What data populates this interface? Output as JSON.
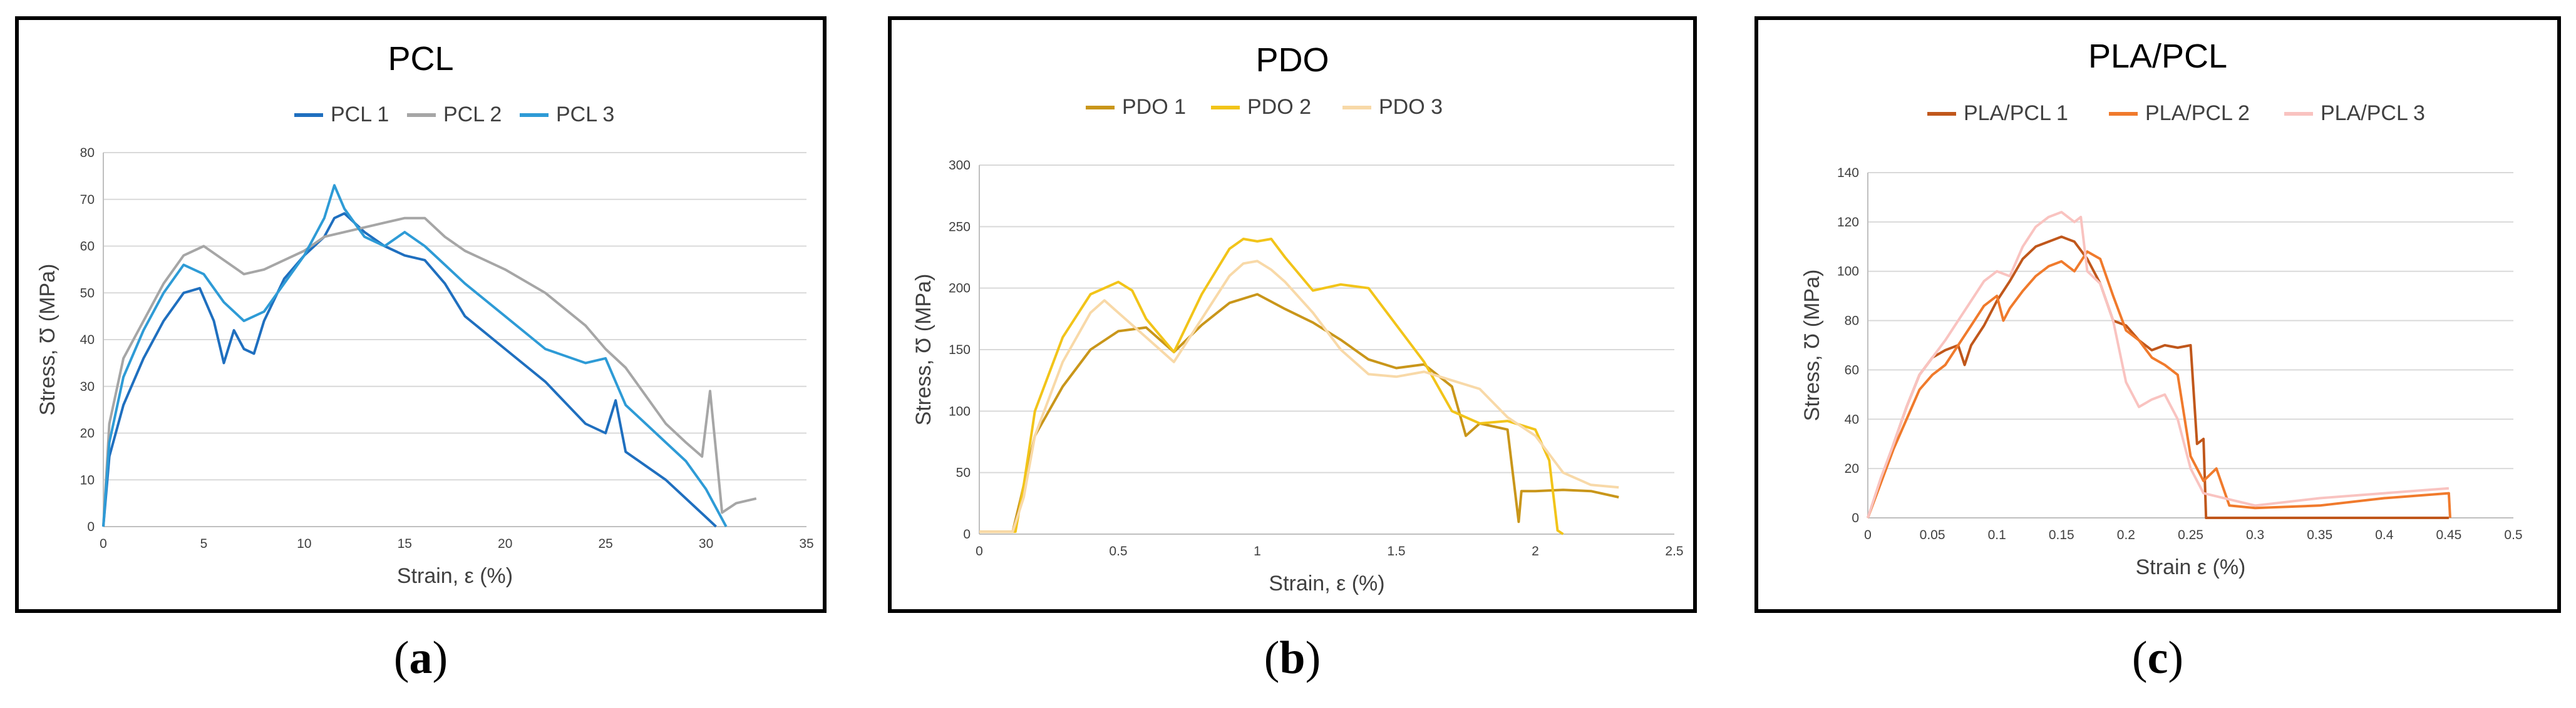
{
  "chart_data": [
    {
      "type": "line",
      "title": "PCL",
      "xlabel": "Strain, ε (%)",
      "ylabel": "Stress, Ʊ (MPa)",
      "xlim": [
        0,
        35
      ],
      "ylim": [
        0,
        80
      ],
      "xticks": [
        "0",
        "5",
        "10",
        "15",
        "20",
        "25",
        "30",
        "35"
      ],
      "yticks": [
        "0",
        "10",
        "20",
        "30",
        "40",
        "50",
        "60",
        "70",
        "80"
      ],
      "series": [
        {
          "name": "PCL 1",
          "color": "#1f6fbf",
          "x": [
            0,
            0.3,
            1,
            2,
            3,
            4,
            4.8,
            5.5,
            6,
            6.5,
            7,
            7.5,
            8,
            9,
            10,
            11,
            11.5,
            12,
            13,
            14,
            15,
            16,
            17,
            18,
            20,
            22,
            24,
            25,
            25.5,
            26,
            27,
            28,
            29,
            30,
            30.5
          ],
          "y": [
            0,
            15,
            26,
            36,
            44,
            50,
            51,
            44,
            35,
            42,
            38,
            37,
            44,
            53,
            58,
            62,
            66,
            67,
            63,
            60,
            58,
            57,
            52,
            45,
            38,
            31,
            22,
            20,
            27,
            16,
            13,
            10,
            6,
            2,
            0
          ]
        },
        {
          "name": "PCL 2",
          "color": "#a6a6a6",
          "x": [
            0,
            0.3,
            1,
            2,
            3,
            4,
            5,
            6,
            7,
            8,
            9,
            10,
            11,
            12,
            13,
            14,
            15,
            16,
            17,
            18,
            20,
            22,
            24,
            25,
            26,
            27,
            28,
            29,
            29.8,
            30.2,
            30.8,
            31.5,
            32.5
          ],
          "y": [
            0,
            22,
            36,
            44,
            52,
            58,
            60,
            57,
            54,
            55,
            57,
            59,
            62,
            63,
            64,
            65,
            66,
            66,
            62,
            59,
            55,
            50,
            43,
            38,
            34,
            28,
            22,
            18,
            15,
            29,
            3,
            5,
            6
          ]
        },
        {
          "name": "PCL 3",
          "color": "#2e9bd6",
          "x": [
            0,
            0.3,
            1,
            2,
            3,
            4,
            5,
            6,
            7,
            8,
            9,
            10,
            11,
            11.5,
            12,
            13,
            14,
            15,
            16,
            17,
            18,
            20,
            22,
            24,
            25,
            26,
            27,
            28,
            29,
            30,
            31
          ],
          "y": [
            0,
            18,
            32,
            42,
            50,
            56,
            54,
            48,
            44,
            46,
            52,
            58,
            66,
            73,
            68,
            62,
            60,
            63,
            60,
            56,
            52,
            45,
            38,
            35,
            36,
            26,
            22,
            18,
            14,
            8,
            0
          ]
        }
      ],
      "legend_position": "top"
    },
    {
      "type": "line",
      "title": "PDO",
      "xlabel": "Strain, ε (%)",
      "ylabel": "Stress, Ʊ (MPa)",
      "xlim": [
        0,
        2.5
      ],
      "ylim": [
        0,
        300
      ],
      "xticks": [
        "0",
        "0.5",
        "1",
        "1.5",
        "2",
        "2.5"
      ],
      "yticks": [
        "0",
        "50",
        "100",
        "150",
        "200",
        "250",
        "300"
      ],
      "series": [
        {
          "name": "PDO 1",
          "color": "#c9961a",
          "x": [
            0,
            0.12,
            0.15,
            0.2,
            0.3,
            0.4,
            0.5,
            0.6,
            0.7,
            0.8,
            0.9,
            1.0,
            1.1,
            1.2,
            1.3,
            1.4,
            1.5,
            1.6,
            1.7,
            1.75,
            1.8,
            1.9,
            1.94,
            1.95,
            2.0,
            2.1,
            2.2,
            2.3
          ],
          "y": [
            2,
            2,
            30,
            80,
            120,
            150,
            165,
            168,
            148,
            170,
            188,
            195,
            183,
            172,
            158,
            142,
            135,
            138,
            120,
            80,
            90,
            85,
            10,
            35,
            35,
            36,
            35,
            30
          ]
        },
        {
          "name": "PDO 2",
          "color": "#f2c419",
          "x": [
            0,
            0.13,
            0.16,
            0.2,
            0.3,
            0.4,
            0.5,
            0.55,
            0.6,
            0.7,
            0.8,
            0.9,
            0.95,
            1.0,
            1.05,
            1.1,
            1.2,
            1.3,
            1.4,
            1.5,
            1.6,
            1.7,
            1.8,
            1.9,
            2.0,
            2.05,
            2.08,
            2.1
          ],
          "y": [
            2,
            2,
            40,
            100,
            160,
            195,
            205,
            198,
            175,
            148,
            195,
            232,
            240,
            238,
            240,
            225,
            198,
            203,
            200,
            170,
            140,
            100,
            90,
            92,
            85,
            60,
            3,
            0
          ]
        },
        {
          "name": "PDO 3",
          "color": "#f8d9a8",
          "x": [
            0,
            0.12,
            0.16,
            0.2,
            0.3,
            0.4,
            0.45,
            0.5,
            0.6,
            0.7,
            0.8,
            0.9,
            0.95,
            1.0,
            1.05,
            1.1,
            1.2,
            1.3,
            1.4,
            1.5,
            1.6,
            1.7,
            1.8,
            1.9,
            2.0,
            2.1,
            2.2,
            2.3
          ],
          "y": [
            2,
            2,
            30,
            80,
            140,
            180,
            190,
            180,
            160,
            140,
            175,
            210,
            220,
            222,
            215,
            205,
            180,
            150,
            130,
            128,
            132,
            125,
            118,
            95,
            80,
            50,
            40,
            38
          ]
        }
      ],
      "legend_position": "top"
    },
    {
      "type": "line",
      "title": "PLA/PCL",
      "xlabel": "Strain ε (%)",
      "ylabel": "Stress, Ʊ (MPa)",
      "xlim": [
        0,
        0.5
      ],
      "ylim": [
        0,
        140
      ],
      "xticks": [
        "0",
        "0.05",
        "0.1",
        "0.15",
        "0.2",
        "0.25",
        "0.3",
        "0.35",
        "0.4",
        "0.45",
        "0.5"
      ],
      "yticks": [
        "0",
        "20",
        "40",
        "60",
        "80",
        "100",
        "120",
        "140"
      ],
      "series": [
        {
          "name": "PLA/PCL 1",
          "color": "#c0571b",
          "x": [
            0,
            0.01,
            0.02,
            0.03,
            0.04,
            0.05,
            0.06,
            0.07,
            0.075,
            0.08,
            0.09,
            0.1,
            0.11,
            0.12,
            0.13,
            0.14,
            0.15,
            0.16,
            0.17,
            0.18,
            0.19,
            0.2,
            0.21,
            0.22,
            0.23,
            0.24,
            0.25,
            0.255,
            0.26,
            0.262,
            0.3,
            0.35,
            0.4,
            0.45
          ],
          "y": [
            0,
            15,
            30,
            45,
            58,
            65,
            68,
            70,
            62,
            70,
            78,
            88,
            96,
            105,
            110,
            112,
            114,
            112,
            105,
            95,
            80,
            78,
            72,
            68,
            70,
            69,
            70,
            30,
            32,
            0,
            0,
            0,
            0,
            0
          ]
        },
        {
          "name": "PLA/PCL 2",
          "color": "#f07a2c",
          "x": [
            0,
            0.01,
            0.02,
            0.03,
            0.04,
            0.05,
            0.06,
            0.07,
            0.08,
            0.09,
            0.1,
            0.105,
            0.11,
            0.12,
            0.13,
            0.14,
            0.15,
            0.16,
            0.17,
            0.18,
            0.19,
            0.2,
            0.21,
            0.22,
            0.23,
            0.24,
            0.25,
            0.26,
            0.27,
            0.28,
            0.3,
            0.35,
            0.4,
            0.45,
            0.451
          ],
          "y": [
            0,
            14,
            28,
            40,
            52,
            58,
            62,
            70,
            78,
            86,
            90,
            80,
            85,
            92,
            98,
            102,
            104,
            100,
            108,
            105,
            90,
            76,
            72,
            65,
            62,
            58,
            25,
            15,
            20,
            5,
            4,
            5,
            8,
            10,
            0
          ]
        },
        {
          "name": "PLA/PCL 3",
          "color": "#f9c3c0",
          "x": [
            0,
            0.01,
            0.02,
            0.03,
            0.04,
            0.05,
            0.06,
            0.07,
            0.08,
            0.09,
            0.1,
            0.11,
            0.12,
            0.13,
            0.14,
            0.15,
            0.16,
            0.165,
            0.17,
            0.18,
            0.19,
            0.2,
            0.21,
            0.22,
            0.23,
            0.24,
            0.25,
            0.26,
            0.3,
            0.35,
            0.4,
            0.45
          ],
          "y": [
            0,
            16,
            30,
            45,
            58,
            65,
            72,
            80,
            88,
            96,
            100,
            98,
            110,
            118,
            122,
            124,
            120,
            122,
            100,
            95,
            80,
            55,
            45,
            48,
            50,
            40,
            20,
            10,
            5,
            8,
            10,
            12
          ]
        }
      ],
      "legend_position": "top"
    }
  ],
  "captions": [
    "a",
    "b",
    "c"
  ]
}
